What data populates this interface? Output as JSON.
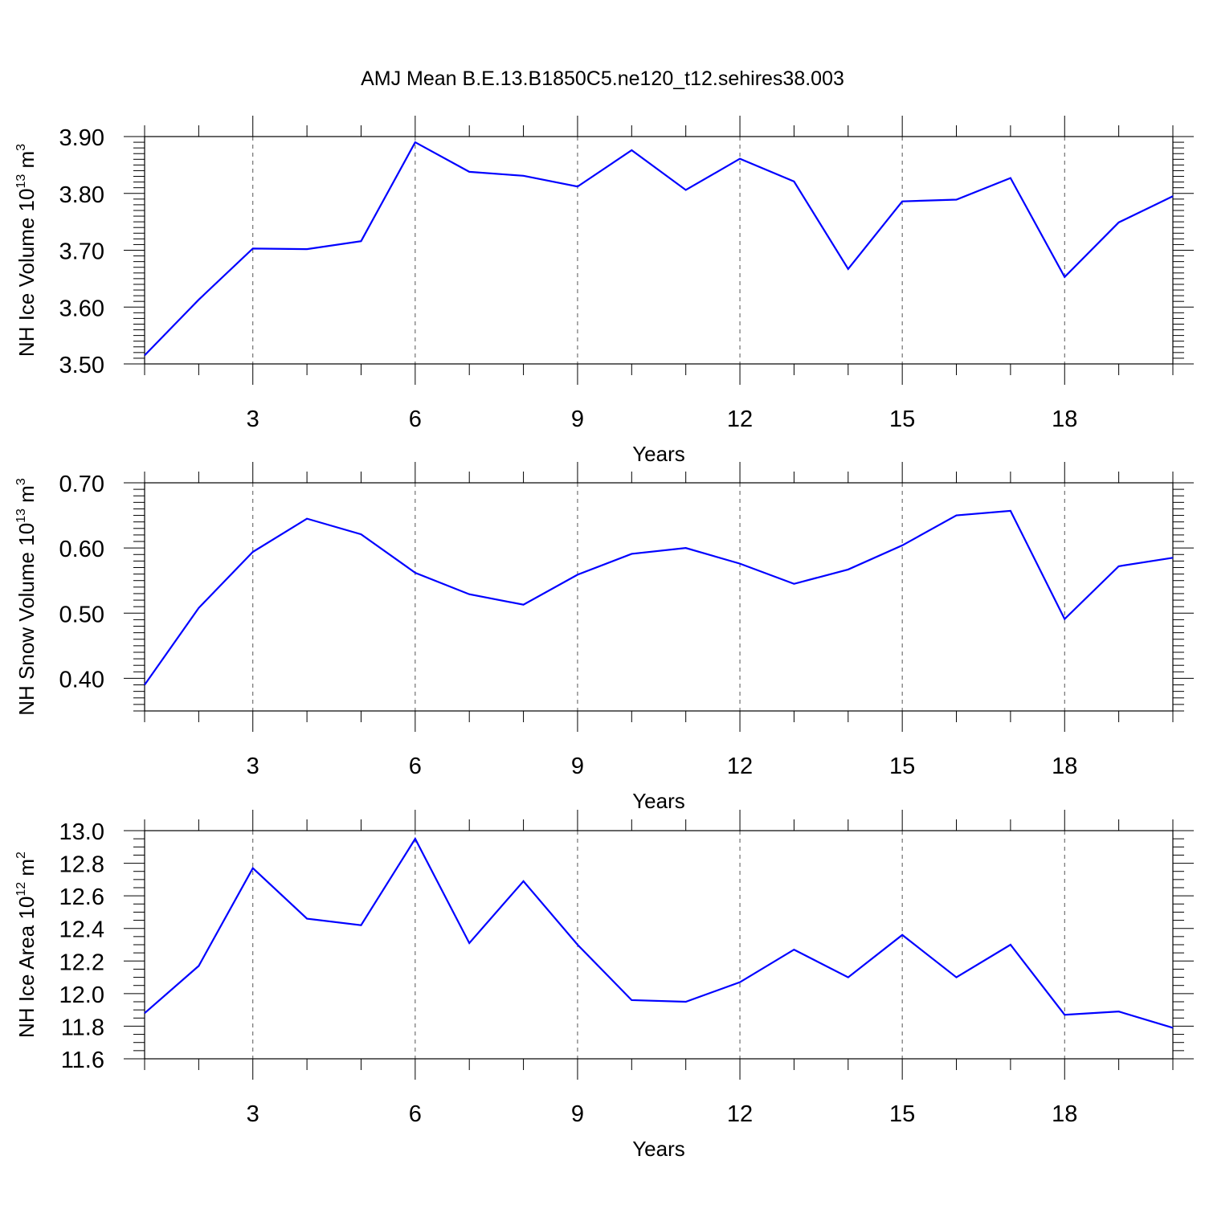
{
  "chart_data": [
    {
      "type": "line",
      "title": "AMJ Mean B.E.13.B1850C5.ne120_t12.sehires38.003",
      "xlabel": "Years",
      "ylabel": {
        "base": "NH Ice Volume 10",
        "exp": "13",
        "unit": " m",
        "unit_exp": "3"
      },
      "xlim": [
        1,
        20
      ],
      "xticks": [
        3,
        6,
        9,
        12,
        15,
        18
      ],
      "ylim": [
        3.5,
        3.9
      ],
      "yticks": [
        3.5,
        3.6,
        3.7,
        3.8,
        3.9
      ],
      "ytick_labels": [
        "3.50",
        "3.60",
        "3.70",
        "3.80",
        "3.90"
      ],
      "x": [
        1,
        2,
        3,
        4,
        5,
        6,
        7,
        8,
        9,
        10,
        11,
        12,
        13,
        14,
        15,
        16,
        17,
        18,
        19,
        20
      ],
      "series": [
        {
          "name": "NH Ice Volume",
          "color": "#0000ff",
          "values": [
            3.515,
            3.613,
            3.703,
            3.702,
            3.716,
            3.89,
            3.838,
            3.831,
            3.812,
            3.876,
            3.806,
            3.861,
            3.821,
            3.667,
            3.786,
            3.789,
            3.827,
            3.653,
            3.749,
            3.795
          ]
        }
      ]
    },
    {
      "type": "line",
      "xlabel": "Years",
      "ylabel": {
        "base": "NH Snow Volume 10",
        "exp": "13",
        "unit": " m",
        "unit_exp": "3"
      },
      "xlim": [
        1,
        20
      ],
      "xticks": [
        3,
        6,
        9,
        12,
        15,
        18
      ],
      "ylim": [
        0.35,
        0.7
      ],
      "yticks": [
        0.4,
        0.5,
        0.6,
        0.7
      ],
      "ytick_labels": [
        "0.40",
        "0.50",
        "0.60",
        "0.70"
      ],
      "x": [
        1,
        2,
        3,
        4,
        5,
        6,
        7,
        8,
        9,
        10,
        11,
        12,
        13,
        14,
        15,
        16,
        17,
        18,
        19,
        20
      ],
      "series": [
        {
          "name": "NH Snow Volume",
          "color": "#0000ff",
          "values": [
            0.39,
            0.508,
            0.594,
            0.645,
            0.621,
            0.562,
            0.529,
            0.513,
            0.559,
            0.591,
            0.6,
            0.576,
            0.545,
            0.567,
            0.604,
            0.65,
            0.657,
            0.491,
            0.572,
            0.585
          ]
        }
      ]
    },
    {
      "type": "line",
      "xlabel": "Years",
      "ylabel": {
        "base": "NH Ice Area 10",
        "exp": "12",
        "unit": " m",
        "unit_exp": "2"
      },
      "xlim": [
        1,
        20
      ],
      "xticks": [
        3,
        6,
        9,
        12,
        15,
        18
      ],
      "ylim": [
        11.6,
        13.0
      ],
      "yticks": [
        11.6,
        11.8,
        12.0,
        12.2,
        12.4,
        12.6,
        12.8,
        13.0
      ],
      "ytick_labels": [
        "11.6",
        "11.8",
        "12.0",
        "12.2",
        "12.4",
        "12.6",
        "12.8",
        "13.0"
      ],
      "x": [
        1,
        2,
        3,
        4,
        5,
        6,
        7,
        8,
        9,
        10,
        11,
        12,
        13,
        14,
        15,
        16,
        17,
        18,
        19,
        20
      ],
      "series": [
        {
          "name": "NH Ice Area",
          "color": "#0000ff",
          "values": [
            11.88,
            12.17,
            12.77,
            12.46,
            12.42,
            12.95,
            12.31,
            12.69,
            12.3,
            11.96,
            11.95,
            12.07,
            12.27,
            12.1,
            12.36,
            12.1,
            12.3,
            11.87,
            11.89,
            11.79
          ]
        }
      ]
    }
  ]
}
